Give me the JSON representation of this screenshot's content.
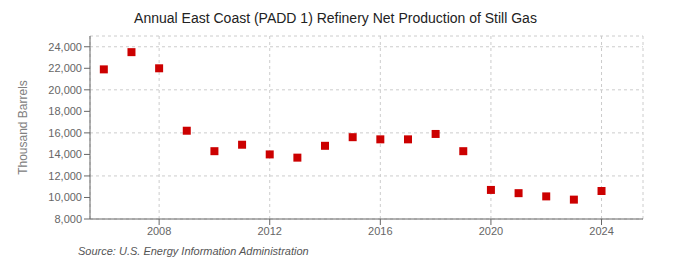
{
  "chart_data": {
    "type": "scatter",
    "title": "Annual East Coast (PADD 1) Refinery Net Production of Still Gas",
    "ylabel": "Thousand Barrels",
    "source": "Source: U.S. Energy Information Administration",
    "x": [
      2006,
      2007,
      2008,
      2009,
      2010,
      2011,
      2012,
      2013,
      2014,
      2015,
      2016,
      2017,
      2018,
      2019,
      2020,
      2021,
      2022,
      2023,
      2024
    ],
    "values": [
      21900,
      23500,
      22000,
      16200,
      14300,
      14900,
      14000,
      13700,
      14800,
      15600,
      15400,
      15400,
      15900,
      14300,
      10700,
      10400,
      10100,
      9800,
      10600
    ],
    "color": "#cc0000",
    "marker": "square",
    "xlim": [
      2005.5,
      2025.5
    ],
    "ylim": [
      8000,
      25000
    ],
    "xticks": [
      2008,
      2012,
      2016,
      2020,
      2024
    ],
    "yticks": [
      {
        "value": 8000,
        "label": "8,000"
      },
      {
        "value": 10000,
        "label": "10,000"
      },
      {
        "value": 12000,
        "label": "12,000"
      },
      {
        "value": 14000,
        "label": "14,000"
      },
      {
        "value": 16000,
        "label": "16,000"
      },
      {
        "value": 18000,
        "label": "18,000"
      },
      {
        "value": 20000,
        "label": "20,000"
      },
      {
        "value": 22000,
        "label": "22,000"
      },
      {
        "value": 24000,
        "label": "24,000"
      }
    ],
    "grid": true
  }
}
